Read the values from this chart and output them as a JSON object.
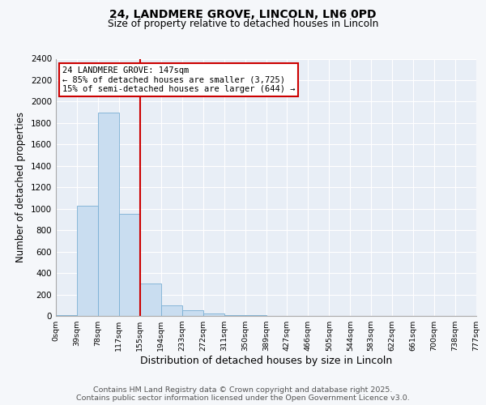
{
  "title1": "24, LANDMERE GROVE, LINCOLN, LN6 0PD",
  "title2": "Size of property relative to detached houses in Lincoln",
  "xlabel": "Distribution of detached houses by size in Lincoln",
  "ylabel": "Number of detached properties",
  "bar_color": "#c9ddf0",
  "bar_edgecolor": "#7aafd4",
  "plot_bg_color": "#e8eef6",
  "grid_color": "#ffffff",
  "fig_bg_color": "#f5f7fa",
  "bin_labels": [
    "0sqm",
    "39sqm",
    "78sqm",
    "117sqm",
    "155sqm",
    "194sqm",
    "233sqm",
    "272sqm",
    "311sqm",
    "350sqm",
    "389sqm",
    "427sqm",
    "466sqm",
    "505sqm",
    "544sqm",
    "583sqm",
    "622sqm",
    "661sqm",
    "700sqm",
    "738sqm",
    "777sqm"
  ],
  "bar_heights": [
    5,
    1025,
    1900,
    950,
    300,
    100,
    50,
    25,
    10,
    5,
    2,
    0,
    0,
    0,
    0,
    0,
    0,
    0,
    0,
    0
  ],
  "property_line_x_label": "155sqm",
  "property_line_color": "#cc0000",
  "annotation_text": "24 LANDMERE GROVE: 147sqm\n← 85% of detached houses are smaller (3,725)\n15% of semi-detached houses are larger (644) →",
  "annotation_box_edgecolor": "#cc0000",
  "ylim": [
    0,
    2400
  ],
  "yticks": [
    0,
    200,
    400,
    600,
    800,
    1000,
    1200,
    1400,
    1600,
    1800,
    2000,
    2200,
    2400
  ],
  "footer1": "Contains HM Land Registry data © Crown copyright and database right 2025.",
  "footer2": "Contains public sector information licensed under the Open Government Licence v3.0."
}
